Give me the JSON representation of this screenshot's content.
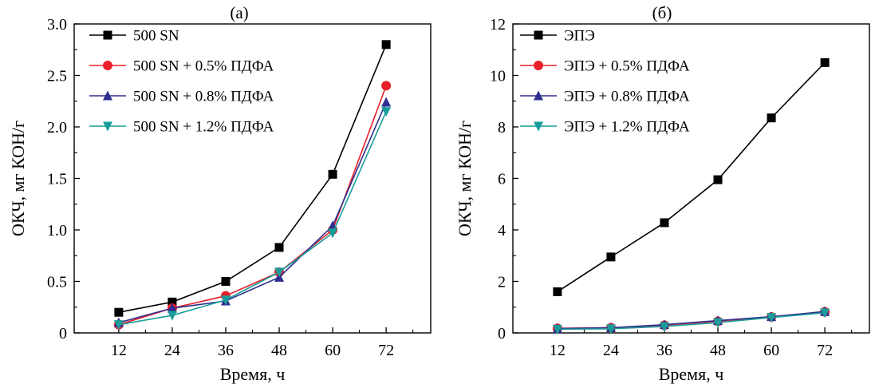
{
  "chart_data": [
    {
      "type": "line",
      "title": "(a)",
      "xlabel": "Время, ч",
      "ylabel": "ОКЧ, мг КОН/г",
      "x": [
        12,
        24,
        36,
        48,
        60,
        72
      ],
      "xlim": [
        2,
        82
      ],
      "ylim": [
        0,
        3.0
      ],
      "yticks": [
        "0",
        "0.5",
        "1.0",
        "1.5",
        "2.0",
        "2.5",
        "3.0"
      ],
      "ytick_values": [
        0,
        0.5,
        1.0,
        1.5,
        2.0,
        2.5,
        3.0
      ],
      "xticks": [
        "12",
        "24",
        "36",
        "48",
        "60",
        "72"
      ],
      "grid": false,
      "legend_position": "top-left",
      "series": [
        {
          "name": "500 SN",
          "color": "#000000",
          "marker": "square",
          "values": [
            0.2,
            0.3,
            0.5,
            0.83,
            1.54,
            2.8
          ]
        },
        {
          "name": "500 SN + 0.5%  ПДФА",
          "color": "#e8202a",
          "marker": "circle",
          "values": [
            0.08,
            0.24,
            0.36,
            0.59,
            1.0,
            2.4
          ]
        },
        {
          "name": "500 SN + 0.8%  ПДФА",
          "color": "#2e2f8f",
          "marker": "triangle-up",
          "values": [
            0.1,
            0.24,
            0.31,
            0.54,
            1.04,
            2.24
          ]
        },
        {
          "name": "500 SN + 1.2%  ПДФА",
          "color": "#1a9d9a",
          "marker": "triangle-down",
          "values": [
            0.08,
            0.17,
            0.32,
            0.59,
            0.97,
            2.15
          ]
        }
      ]
    },
    {
      "type": "line",
      "title": "(б)",
      "xlabel": "Время, ч",
      "ylabel": "ОКЧ, мг КОН/г",
      "x": [
        12,
        24,
        36,
        48,
        60,
        72
      ],
      "xlim": [
        2,
        82
      ],
      "ylim": [
        0,
        12
      ],
      "yticks": [
        "0",
        "2",
        "4",
        "6",
        "8",
        "10",
        "12"
      ],
      "ytick_values": [
        0,
        2,
        4,
        6,
        8,
        10,
        12
      ],
      "xticks": [
        "12",
        "24",
        "36",
        "48",
        "60",
        "72"
      ],
      "grid": false,
      "legend_position": "top-left",
      "series": [
        {
          "name": "ЭПЭ",
          "color": "#000000",
          "marker": "square",
          "values": [
            1.6,
            2.95,
            4.28,
            5.95,
            8.35,
            10.5
          ]
        },
        {
          "name": "ЭПЭ + 0.5%  ПДФА",
          "color": "#e8202a",
          "marker": "circle",
          "values": [
            0.18,
            0.2,
            0.3,
            0.45,
            0.62,
            0.82
          ]
        },
        {
          "name": "ЭПЭ + 0.8%  ПДФА",
          "color": "#2e2f8f",
          "marker": "triangle-up",
          "values": [
            0.17,
            0.2,
            0.32,
            0.48,
            0.63,
            0.83
          ]
        },
        {
          "name": "ЭПЭ + 1.2%  ПДФА",
          "color": "#1a9d9a",
          "marker": "triangle-down",
          "values": [
            0.14,
            0.16,
            0.25,
            0.4,
            0.6,
            0.78
          ]
        }
      ]
    }
  ]
}
